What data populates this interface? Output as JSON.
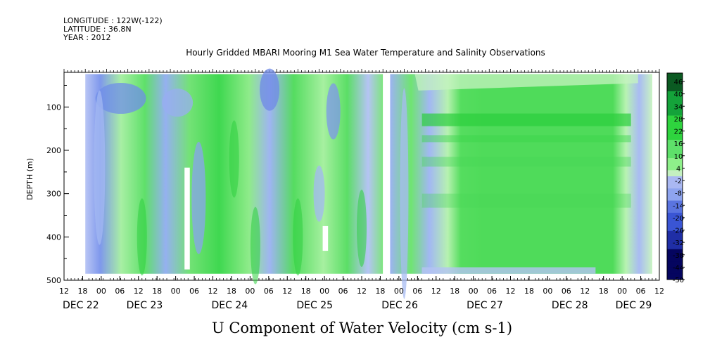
{
  "header": {
    "longitude": "LONGITUDE : 122W(-122)",
    "latitude": "LATITUDE : 36.8N",
    "year": "YEAR : 2012"
  },
  "chart_data": {
    "type": "heatmap",
    "title": "Hourly Gridded MBARI Mooring M1 Sea Water Temperature and Salinity Observations",
    "xlabel": "U Component of Water Velocity (cm s-1)",
    "ylabel": "DEPTH (m)",
    "y_ticks": [
      "100",
      "200",
      "300",
      "400",
      "500"
    ],
    "y_range": [
      20,
      500
    ],
    "y_inverted": true,
    "x_range_hours": [
      0,
      168
    ],
    "x_hour_ticks": [
      "12",
      "18",
      "00",
      "06",
      "12",
      "18",
      "00",
      "06",
      "12",
      "18",
      "00",
      "06",
      "12",
      "18",
      "00",
      "06",
      "12",
      "18",
      "00",
      "06",
      "12",
      "18",
      "00",
      "06",
      "12",
      "18",
      "00",
      "06",
      "12",
      "18",
      "00",
      "06",
      "12"
    ],
    "x_day_labels": [
      "DEC 22",
      "DEC 23",
      "DEC 24",
      "DEC 25",
      "DEC 26",
      "DEC 27",
      "DEC 28",
      "DEC 29"
    ],
    "colorbar": {
      "labels": [
        "46",
        "40",
        "34",
        "28",
        "22",
        "16",
        "10",
        "4",
        "-2",
        "-8",
        "-14",
        "-20",
        "-26",
        "-32",
        "-38",
        "-44",
        "-50"
      ],
      "min": -50,
      "max": 50,
      "step": 3,
      "colors": {
        "strong_negative": "#05055f",
        "negative": "#5a74e0",
        "weak_negative": "#aab8f2",
        "near_zero": "#c4f0c0",
        "weak_positive": "#8ef08a",
        "positive": "#2ed43e",
        "strong_positive": "#0b5a22"
      }
    }
  }
}
